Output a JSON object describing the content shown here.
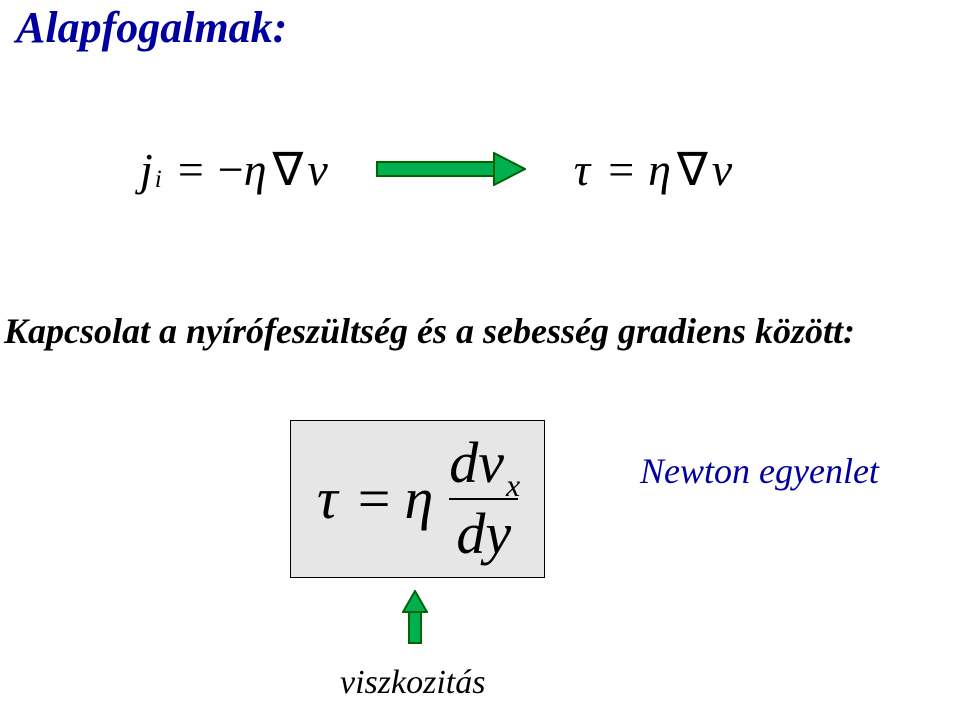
{
  "title": {
    "text": "Alapfogalmak:",
    "color": "#0000a0",
    "fontsize": 44
  },
  "equations": {
    "left": {
      "j": "j",
      "j_sub": "i",
      "eq": "=",
      "minus": "−",
      "eta": "η",
      "nabla": "∇",
      "v": "v"
    },
    "right": {
      "tau": "τ",
      "eq": "=",
      "eta": "η",
      "nabla": "∇",
      "v": "v"
    },
    "fontsize": 46,
    "color": "#000000"
  },
  "arrow": {
    "width": 150,
    "height": 34,
    "stroke": "#006400",
    "fill": "#00b050"
  },
  "relation": {
    "text": "Kapcsolat a nyírófeszültség és a sebesség gradiens között:",
    "color": "#000000",
    "fontsize": 36
  },
  "boxed": {
    "tau": "τ",
    "eq": "=",
    "eta": "η",
    "num_d": "d",
    "num_v": "v",
    "num_sub": "x",
    "den_d": "d",
    "den_y": "y",
    "bg": "#e6e6e6",
    "border": "#000000",
    "fontsize": 58
  },
  "newton": {
    "text": "Newton egyenlet",
    "color": "#0000a0",
    "fontsize": 36
  },
  "up_arrow": {
    "width": 26,
    "height": 54,
    "stroke": "#006400",
    "fill": "#00b050"
  },
  "viscosity": {
    "text": "viszkozitás",
    "color": "#000000",
    "fontsize": 34
  }
}
